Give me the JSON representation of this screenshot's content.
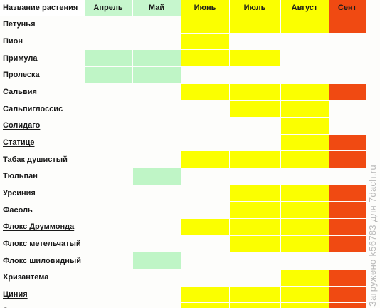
{
  "header": {
    "name_col": "Название растения",
    "months": [
      "Апрель",
      "Май",
      "Июнь",
      "Июль",
      "Август",
      "Сент"
    ]
  },
  "legend_colors": {
    "spring": "#bff5c6",
    "summer": "#fbff00",
    "autumn": "#f04a12"
  },
  "rows": [
    {
      "name": "Петунья",
      "underline": false,
      "bloom": [
        "",
        "",
        "y",
        "y",
        "y",
        "r"
      ]
    },
    {
      "name": "Пион",
      "underline": false,
      "bloom": [
        "",
        "",
        "y",
        "",
        "",
        ""
      ]
    },
    {
      "name": "Примула",
      "underline": false,
      "bloom": [
        "g",
        "g",
        "y",
        "y",
        "",
        ""
      ]
    },
    {
      "name": "Пролеска",
      "underline": false,
      "bloom": [
        "g",
        "g",
        "",
        "",
        "",
        ""
      ]
    },
    {
      "name": "Сальвия",
      "underline": true,
      "bloom": [
        "",
        "",
        "y",
        "y",
        "y",
        "r"
      ]
    },
    {
      "name": "Сальпиглоссис",
      "underline": true,
      "bloom": [
        "",
        "",
        "",
        "y",
        "y",
        ""
      ]
    },
    {
      "name": "Солидаго",
      "underline": true,
      "bloom": [
        "",
        "",
        "",
        "",
        "y",
        ""
      ]
    },
    {
      "name": "Статице",
      "underline": true,
      "bloom": [
        "",
        "",
        "",
        "",
        "y",
        "r"
      ]
    },
    {
      "name": "Табак душистый",
      "underline": false,
      "bloom": [
        "",
        "",
        "y",
        "y",
        "y",
        "r"
      ]
    },
    {
      "name": "Тюльпан",
      "underline": false,
      "bloom": [
        "",
        "g",
        "",
        "",
        "",
        ""
      ]
    },
    {
      "name": "Урсиния",
      "underline": true,
      "bloom": [
        "",
        "",
        "",
        "y",
        "y",
        "r"
      ]
    },
    {
      "name": "Фасоль",
      "underline": false,
      "bloom": [
        "",
        "",
        "",
        "y",
        "y",
        "r"
      ]
    },
    {
      "name": "Флокс Друммонда",
      "underline": true,
      "bloom": [
        "",
        "",
        "y",
        "y",
        "y",
        "r"
      ]
    },
    {
      "name": "Флокс метельчатый",
      "underline": false,
      "bloom": [
        "",
        "",
        "",
        "y",
        "y",
        "r"
      ]
    },
    {
      "name": "Флокс шиловидный",
      "underline": false,
      "bloom": [
        "",
        "g",
        "",
        "",
        "",
        ""
      ]
    },
    {
      "name": "Хризантема",
      "underline": false,
      "bloom": [
        "",
        "",
        "",
        "",
        "y",
        "r"
      ]
    },
    {
      "name": "Циния",
      "underline": true,
      "bloom": [
        "",
        "",
        "y",
        "y",
        "y",
        "r"
      ]
    },
    {
      "name": "Эшшольция",
      "underline": true,
      "bloom": [
        "",
        "",
        "y",
        "y",
        "y",
        "r"
      ]
    }
  ],
  "watermark": "Загружено k56783 для 7dach.ru"
}
